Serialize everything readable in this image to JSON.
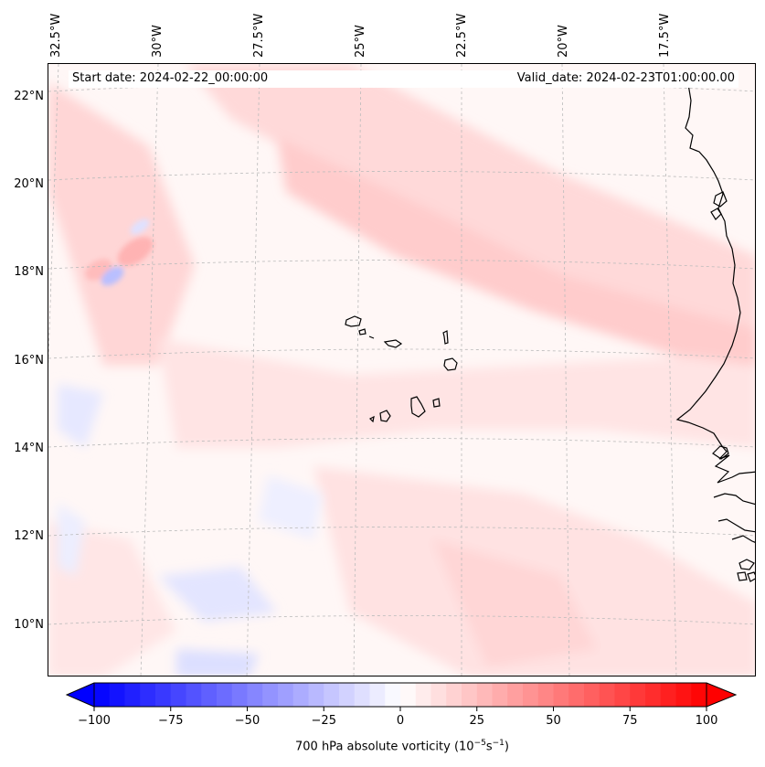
{
  "map": {
    "start_date": "Start date: 2024-02-22_00:00:00",
    "valid_date": "Valid_date: 2024-02-23T01:00:00.00",
    "longitude_labels": [
      "32.5°W",
      "30°W",
      "27.5°W",
      "25°W",
      "22.5°W",
      "20°W",
      "17.5°W"
    ],
    "latitude_labels": [
      "22°N",
      "20°N",
      "18°N",
      "16°N",
      "14°N",
      "12°N",
      "10°N"
    ],
    "field": "700 hPa absolute vorticity",
    "region": "Cabo Verde / West African coast"
  },
  "colorbar": {
    "min": -100,
    "max": 100,
    "ticks": [
      "−100",
      "−75",
      "−50",
      "−25",
      "0",
      "25",
      "50",
      "75",
      "100"
    ],
    "title": "700 hPa absolute vorticity (10",
    "title_exp1": "−5",
    "title_mid": "s",
    "title_exp2": "−1",
    "title_end": ")",
    "colors": {
      "negative": "#0000ff",
      "zero": "#ffffff",
      "positive": "#ff0000"
    },
    "levels": 40
  },
  "colors": {
    "coast": "#000000",
    "grid": "#bbbbbb",
    "ocean_background": "#fff7f6"
  }
}
